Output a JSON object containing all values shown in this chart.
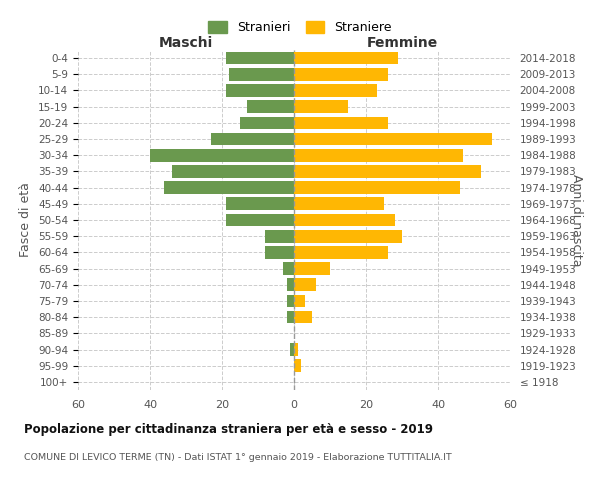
{
  "age_groups": [
    "100+",
    "95-99",
    "90-94",
    "85-89",
    "80-84",
    "75-79",
    "70-74",
    "65-69",
    "60-64",
    "55-59",
    "50-54",
    "45-49",
    "40-44",
    "35-39",
    "30-34",
    "25-29",
    "20-24",
    "15-19",
    "10-14",
    "5-9",
    "0-4"
  ],
  "birth_years": [
    "≤ 1918",
    "1919-1923",
    "1924-1928",
    "1929-1933",
    "1934-1938",
    "1939-1943",
    "1944-1948",
    "1949-1953",
    "1954-1958",
    "1959-1963",
    "1964-1968",
    "1969-1973",
    "1974-1978",
    "1979-1983",
    "1984-1988",
    "1989-1993",
    "1994-1998",
    "1999-2003",
    "2004-2008",
    "2009-2013",
    "2014-2018"
  ],
  "males": [
    0,
    0,
    1,
    0,
    2,
    2,
    2,
    3,
    8,
    8,
    19,
    19,
    36,
    34,
    40,
    23,
    15,
    13,
    19,
    18,
    19
  ],
  "females": [
    0,
    2,
    1,
    0,
    5,
    3,
    6,
    10,
    26,
    30,
    28,
    25,
    46,
    52,
    47,
    55,
    26,
    15,
    23,
    26,
    29
  ],
  "male_color": "#6a994e",
  "female_color": "#ffb703",
  "background_color": "#ffffff",
  "grid_color": "#cccccc",
  "title": "Popolazione per cittadinanza straniera per età e sesso - 2019",
  "subtitle": "COMUNE DI LEVICO TERME (TN) - Dati ISTAT 1° gennaio 2019 - Elaborazione TUTTITALIA.IT",
  "xlabel_left": "Maschi",
  "xlabel_right": "Femmine",
  "ylabel_left": "Fasce di età",
  "ylabel_right": "Anni di nascita",
  "legend_male": "Stranieri",
  "legend_female": "Straniere",
  "xlim": 60,
  "tick_interval": 20
}
